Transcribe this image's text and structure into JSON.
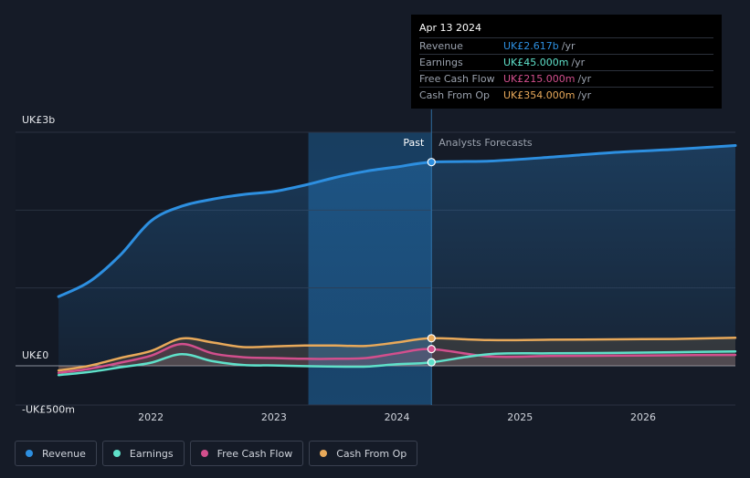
{
  "chart_data": {
    "type": "area",
    "title": "",
    "ylim": [
      -500,
      3000
    ],
    "y_unit": "UK£m",
    "y_labels": [
      {
        "value": 3000,
        "label": "UK£3b"
      },
      {
        "value": 0,
        "label": "UK£0"
      },
      {
        "value": -500,
        "label": "-UK£500m"
      }
    ],
    "x_ticks": [
      {
        "value": 2022.0,
        "label": "2022"
      },
      {
        "value": 2023.0,
        "label": "2023"
      },
      {
        "value": 2024.0,
        "label": "2024"
      },
      {
        "value": 2025.0,
        "label": "2025"
      },
      {
        "value": 2026.0,
        "label": "2026"
      }
    ],
    "xlim": [
      2020.9,
      2026.75
    ],
    "divider": {
      "value": 2024.28,
      "past_label": "Past",
      "forecast_label": "Analysts Forecasts",
      "shade_start": 2023.28
    },
    "series": [
      {
        "name": "Revenue",
        "color": "#2d8fe0",
        "x": [
          2021.25,
          2021.5,
          2021.75,
          2022.0,
          2022.25,
          2022.5,
          2022.75,
          2023.0,
          2023.25,
          2023.5,
          2023.75,
          2024.0,
          2024.28,
          2024.75,
          2025.25,
          2025.75,
          2026.25,
          2026.75
        ],
        "values": [
          890,
          1080,
          1420,
          1860,
          2050,
          2140,
          2200,
          2240,
          2320,
          2420,
          2500,
          2555,
          2617,
          2630,
          2680,
          2740,
          2780,
          2830
        ]
      },
      {
        "name": "Earnings",
        "color": "#5fe0c9",
        "x": [
          2021.25,
          2021.5,
          2021.75,
          2022.0,
          2022.25,
          2022.5,
          2022.75,
          2023.0,
          2023.25,
          2023.5,
          2023.75,
          2024.0,
          2024.28,
          2024.75,
          2025.25,
          2025.75,
          2026.25,
          2026.75
        ],
        "values": [
          -120,
          -80,
          -20,
          40,
          150,
          60,
          10,
          5,
          -5,
          -10,
          -10,
          20,
          45,
          150,
          160,
          165,
          175,
          185
        ]
      },
      {
        "name": "Free Cash Flow",
        "color": "#d24f8d",
        "x": [
          2021.25,
          2021.5,
          2021.75,
          2022.0,
          2022.25,
          2022.5,
          2022.75,
          2023.0,
          2023.25,
          2023.5,
          2023.75,
          2024.0,
          2024.28,
          2024.75,
          2025.25,
          2025.75,
          2026.25,
          2026.75
        ],
        "values": [
          -90,
          -40,
          40,
          130,
          280,
          160,
          110,
          100,
          90,
          90,
          100,
          160,
          215,
          120,
          125,
          130,
          135,
          140
        ]
      },
      {
        "name": "Cash From Op",
        "color": "#e8a95a",
        "x": [
          2021.25,
          2021.5,
          2021.75,
          2022.0,
          2022.25,
          2022.5,
          2022.75,
          2023.0,
          2023.25,
          2023.5,
          2023.75,
          2024.0,
          2024.28,
          2024.75,
          2025.25,
          2025.75,
          2026.25,
          2026.75
        ],
        "values": [
          -60,
          0,
          100,
          190,
          350,
          300,
          240,
          250,
          260,
          260,
          255,
          300,
          354,
          330,
          335,
          340,
          345,
          360
        ]
      }
    ]
  },
  "tooltip": {
    "date": "Apr 13 2024",
    "rows": [
      {
        "label": "Revenue",
        "value": "UK£2.617b",
        "unit": "/yr",
        "color": "#2d8fe0"
      },
      {
        "label": "Earnings",
        "value": "UK£45.000m",
        "unit": "/yr",
        "color": "#5fe0c9"
      },
      {
        "label": "Free Cash Flow",
        "value": "UK£215.000m",
        "unit": "/yr",
        "color": "#d24f8d"
      },
      {
        "label": "Cash From Op",
        "value": "UK£354.000m",
        "unit": "/yr",
        "color": "#e8a95a"
      }
    ]
  },
  "legend": [
    {
      "label": "Revenue",
      "color": "#2d8fe0"
    },
    {
      "label": "Earnings",
      "color": "#5fe0c9"
    },
    {
      "label": "Free Cash Flow",
      "color": "#d24f8d"
    },
    {
      "label": "Cash From Op",
      "color": "#e8a95a"
    }
  ]
}
